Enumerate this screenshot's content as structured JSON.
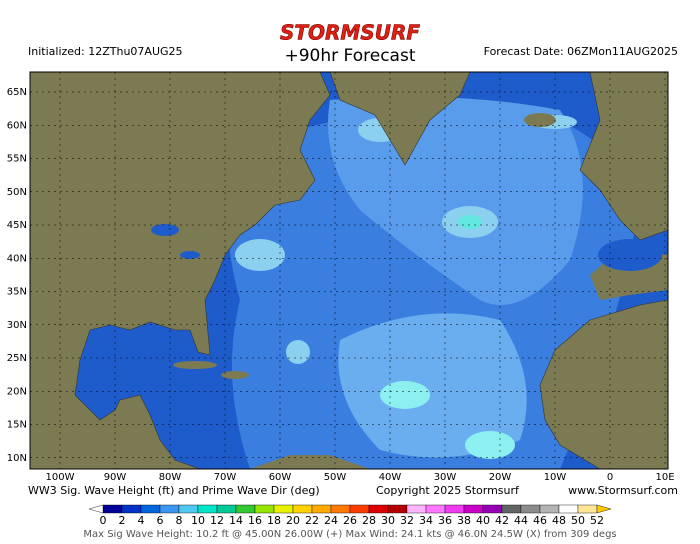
{
  "header": {
    "brand": "STORMSURF",
    "title": "+90hr Forecast",
    "initialized": "Initialized: 12ZThu07AUG25",
    "forecast_date": "Forecast Date: 06ZMon11AUG2025"
  },
  "map": {
    "lat_labels": [
      "65N",
      "60N",
      "55N",
      "50N",
      "45N",
      "40N",
      "35N",
      "30N",
      "25N",
      "20N",
      "15N",
      "10N"
    ],
    "lon_labels": [
      "100W",
      "90W",
      "80W",
      "70W",
      "60W",
      "50W",
      "40W",
      "30W",
      "20W",
      "10W",
      "0",
      "10E"
    ]
  },
  "caption": {
    "description": "WW3 Sig. Wave Height (ft) and Prime Wave Dir (deg)",
    "copyright": "Copyright 2025 Stormsurf",
    "website": "www.Stormsurf.com"
  },
  "legend": {
    "values": [
      0,
      2,
      4,
      6,
      8,
      10,
      12,
      14,
      16,
      18,
      20,
      22,
      24,
      26,
      28,
      30,
      32,
      34,
      36,
      38,
      40,
      42,
      44,
      46,
      48,
      50,
      52
    ],
    "colors": [
      "#000096",
      "#0032c8",
      "#0064dc",
      "#3c96f0",
      "#50c8f0",
      "#00e6c8",
      "#00c896",
      "#32c832",
      "#96e600",
      "#e6f000",
      "#ffd200",
      "#ffaa00",
      "#ff7800",
      "#ff3c00",
      "#dc0000",
      "#b40000",
      "#ffb4ff",
      "#ff78ff",
      "#f03cf0",
      "#c800c8",
      "#9600b4",
      "#646464",
      "#8c8c8c",
      "#b4b4b4",
      "#ffffff",
      "#ffe696"
    ]
  },
  "footer": "Max Sig Wave Height: 10.2 ft @ 45.00N 26.00W (+)   Max Wind: 24.1 kts @ 46.0N 24.5W (X) from 309 degs"
}
